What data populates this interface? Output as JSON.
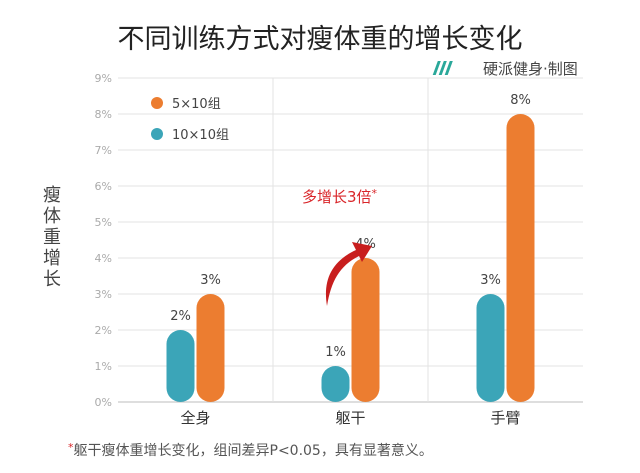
{
  "chart_data": {
    "type": "bar",
    "title": "不同训练方式对瘦体重的增长变化",
    "credit": "硬派健身·制图",
    "credit_icon": "stripes-logo-icon",
    "ylabel": "瘦体重增长",
    "yticks": [
      "0%",
      "1%",
      "2%",
      "3%",
      "4%",
      "5%",
      "6%",
      "7%",
      "8%",
      "9%"
    ],
    "ylim": [
      0,
      9
    ],
    "grid": true,
    "legend_position": "top-left",
    "categories": [
      "全身",
      "躯干",
      "手臂"
    ],
    "series": [
      {
        "name": "10×10组",
        "color": "#3ba5b8",
        "values": [
          2,
          1,
          3
        ],
        "labels": [
          "2%",
          "1%",
          "3%"
        ]
      },
      {
        "name": "5×10组",
        "color": "#ec7d30",
        "values": [
          3,
          4,
          8
        ],
        "labels": [
          "3%",
          "4%",
          "8%"
        ]
      }
    ],
    "annotation": {
      "text": "多增长3倍",
      "star": "*",
      "color": "#d9262a"
    },
    "footnote": {
      "star": "*",
      "text": "躯干瘦体重增长变化，组间差异P<0.05，具有显著意义。"
    }
  }
}
